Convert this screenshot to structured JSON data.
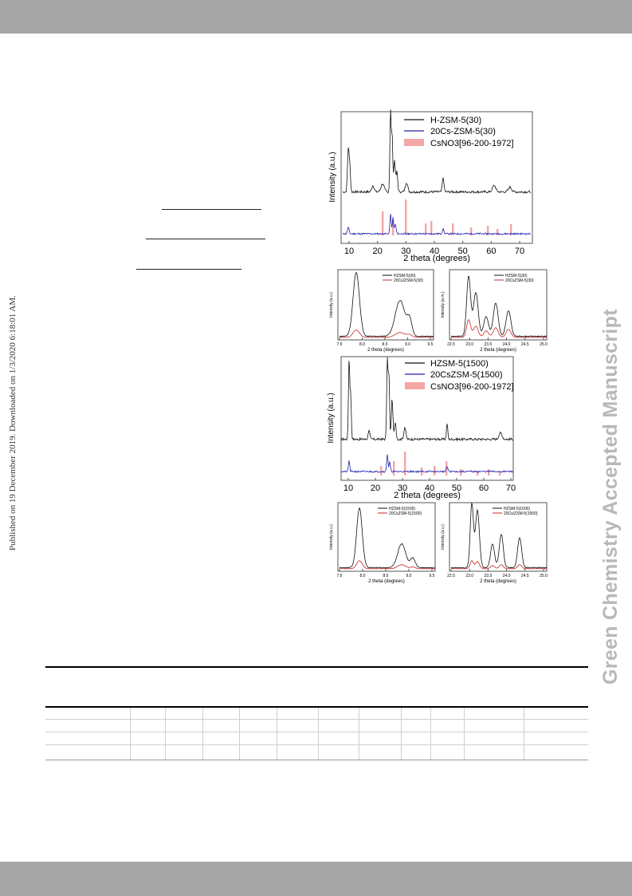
{
  "side_note": "Published on 19 December 2019. Downloaded on 1/3/2020 6:18:01 AM.",
  "watermark": "Green Chemistry Accepted Manuscript",
  "colors": {
    "black": "#111111",
    "blue": "#2020b0",
    "red": "#c62828",
    "pink": "#f4a6a6",
    "bar": "#a6a6a6",
    "watermark": "#b8b8b8"
  },
  "figures": {
    "fig_a": {
      "xlabel": "2 theta (degrees)",
      "ylabel": "Intensity (a.u.)",
      "xticks": [
        "10",
        "20",
        "30",
        "40",
        "50",
        "60",
        "70"
      ],
      "legend": [
        "H-ZSM-5(30)",
        "20Cs-ZSM-5(30)",
        "CsNO3[96-200-1972]"
      ]
    },
    "fig_a_zoom1": {
      "xlabel": "2 theta (degrees)",
      "ylabel": "Intensity (a.u.)",
      "xticks": [
        "7.5",
        "8.0",
        "8.5",
        "9.0",
        "9.5"
      ],
      "legend": [
        "HZSM-5(30)",
        "20Cs/ZSM-5(30)"
      ]
    },
    "fig_a_zoom2": {
      "xlabel": "2 theta (degrees)",
      "ylabel": "Intensity (a.m.)",
      "xticks": [
        "22.5",
        "23.0",
        "23.5",
        "24.0",
        "24.5",
        "25.0"
      ],
      "legend": [
        "HZSM-5(30)",
        "20CsZSM-5(30)"
      ]
    },
    "fig_b": {
      "xlabel": "2 theta (degrees)",
      "ylabel": "Intensity (a.u.)",
      "xticks": [
        "10",
        "20",
        "30",
        "40",
        "50",
        "60",
        "70"
      ],
      "legend": [
        "HZSM-5(1500)",
        "20CsZSM-5(1500)",
        "CsNO3[96-200-1972]"
      ]
    },
    "fig_b_zoom1": {
      "xlabel": "2 theta (degrees)",
      "ylabel": "Intensity (a.u.)",
      "xticks": [
        "7.5",
        "8.0",
        "8.5",
        "9.0",
        "9.5"
      ],
      "legend": [
        "HZSM-5(1500)",
        "20CsZSM-5(1500)"
      ]
    },
    "fig_b_zoom2": {
      "xlabel": "2 theta (degrees)",
      "ylabel": "Intensity (a.u.)",
      "xticks": [
        "22.5",
        "23.0",
        "23.5",
        "24.0",
        "24.5",
        "25.0"
      ],
      "legend": [
        "HZSM-5(1500)",
        "20Cs/ZSM-5(1500)"
      ]
    }
  }
}
